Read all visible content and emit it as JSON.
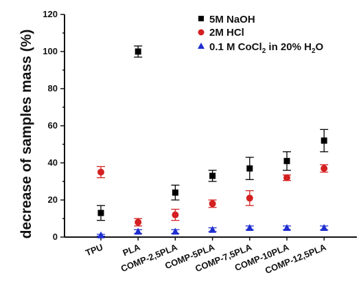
{
  "chart_data": {
    "type": "scatter",
    "ylabel": "decrease of samples mass (%)",
    "xlabel": "",
    "ylim": [
      0,
      120
    ],
    "yticks": [
      "0",
      "20",
      "40",
      "60",
      "80",
      "100",
      "120"
    ],
    "categories": [
      "TPU",
      "PLA",
      "COMP-2,5PLA",
      "COMP-5PLA",
      "COMP-7,5PLA",
      "COMP-10PLA",
      "COMP-12,5PLA"
    ],
    "legend_position": "top-right",
    "series": [
      {
        "name": "5M NaOH",
        "marker": "square",
        "color": "#000000",
        "values": [
          13,
          100,
          24,
          33,
          37,
          41,
          52
        ],
        "errors": [
          4,
          3,
          4,
          3,
          6,
          5,
          6
        ]
      },
      {
        "name": "2M HCl",
        "marker": "circle",
        "color": "#d42020",
        "values": [
          35,
          8,
          12,
          18,
          21,
          32,
          37
        ],
        "errors": [
          3,
          2,
          3,
          2,
          4,
          1.5,
          2
        ]
      },
      {
        "name_parts": [
          "0.1 M CoCl",
          "2",
          " in 20% H",
          "2",
          "O"
        ],
        "marker": "triangle",
        "color": "#1f2fcf",
        "values": [
          1,
          3,
          3,
          4,
          5,
          5,
          5
        ],
        "errors": [
          0.5,
          1,
          1,
          1,
          1,
          1,
          1
        ]
      }
    ]
  }
}
